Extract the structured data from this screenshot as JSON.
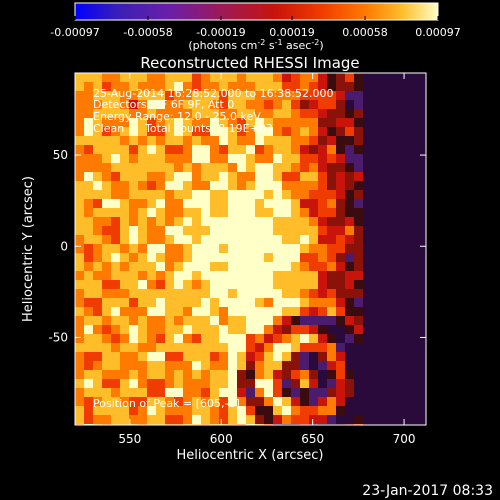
{
  "colorbar": {
    "tick_labels": [
      "-0.00097",
      "-0.00058",
      "-0.00019",
      "0.00019",
      "0.00058",
      "0.00097"
    ],
    "tick_values": [
      -0.00097,
      -0.00058,
      -0.00019,
      0.00019,
      0.00058,
      0.00097
    ],
    "range": [
      -0.00097,
      0.00097
    ],
    "units_prefix": "(photons cm",
    "units_sup1": "-2",
    "units_mid1": " s",
    "units_sup2": "-1",
    "units_mid2": " asec",
    "units_sup3": "-2",
    "units_suffix": ")",
    "colors": [
      "#0000ff",
      "#3b1fb5",
      "#6a1fa8",
      "#9b1a5a",
      "#c8140a",
      "#f03c00",
      "#ff7a00",
      "#ffbd2a",
      "#ffffc8"
    ]
  },
  "annotations": {
    "time_range": "25-Aug-2014 16:28:52.000 to 16:38:52.000",
    "detectors": "Detectors: 3F 6F 9F, Att 0",
    "energy": "Energy Range: 12.0 - 25.0 keV",
    "clean_label": "Clean",
    "total_counts": "Total counts: 8.19E+03",
    "peak_position": "Position of Peak = [605,-2]"
  },
  "footer": {
    "timestamp": "23-Jan-2017 08:33"
  },
  "chart_data": {
    "type": "heatmap",
    "title": "Reconstructed RHESSI Image",
    "xlabel": "Heliocentric X (arcsec)",
    "ylabel": "Heliocentric Y (arcsec)",
    "xlim": [
      520,
      712
    ],
    "ylim": [
      -98,
      95
    ],
    "x_ticks": [
      550,
      600,
      650,
      700
    ],
    "x_tick_labels": [
      "550",
      "600",
      "650",
      "700"
    ],
    "y_ticks": [
      -50,
      0,
      50
    ],
    "y_tick_labels": [
      "-50",
      "0",
      "50"
    ],
    "peak": [
      605,
      -2
    ],
    "grid": false
  }
}
